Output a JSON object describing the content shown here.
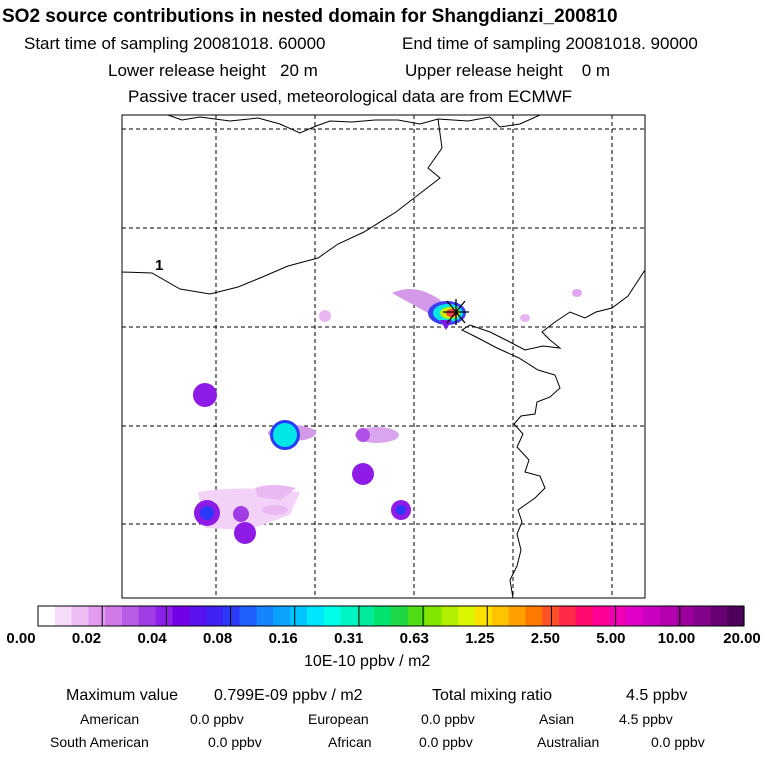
{
  "header": {
    "title": "SO2 source contributions in nested domain for Shangdianzi_200810",
    "start_label": "Start time of sampling 20081018. 60000",
    "end_label": "End time of sampling 20081018. 90000",
    "lower_label": "Lower release height   20 m",
    "upper_label": "Upper release height    0 m",
    "tracer_note": "Passive tracer used, meteorological data are from ECMWF"
  },
  "map": {
    "region_label": "1",
    "station_marker": "station-cross-icon"
  },
  "colorbar": {
    "tick_labels": [
      "0.00",
      "0.02",
      "0.04",
      "0.08",
      "0.16",
      "0.31",
      "0.63",
      "1.25",
      "2.50",
      "5.00",
      "10.00",
      "20.00"
    ],
    "units": "10E-10 ppbv / m2",
    "colors": [
      "#ffffff",
      "#f6dcf8",
      "#eebdf4",
      "#e29bee",
      "#cf78e8",
      "#b85be6",
      "#a23de6",
      "#8c1fe8",
      "#7400e6",
      "#5a12ee",
      "#3f22f4",
      "#2a3af8",
      "#1f60fc",
      "#1484ff",
      "#0aa4ff",
      "#00c4ff",
      "#00e6ff",
      "#00ffe6",
      "#00f5c4",
      "#00eb9a",
      "#00e16e",
      "#1ed744",
      "#50dc14",
      "#82e600",
      "#b4ee00",
      "#dcf500",
      "#ffe100",
      "#ffc300",
      "#ffa000",
      "#ff7800",
      "#ff5028",
      "#ff2846",
      "#ff0a6e",
      "#ff0096",
      "#f000b4",
      "#e000c8",
      "#cc00c0",
      "#b400b0",
      "#9c009c",
      "#82008a",
      "#680074",
      "#4c005a"
    ]
  },
  "stats": {
    "max_label": "Maximum value",
    "max_value": "0.799E-09 ppbv / m2",
    "total_label": "Total mixing ratio",
    "total_value": "4.5 ppbv",
    "regions": [
      {
        "name": "American",
        "value": "0.0 ppbv"
      },
      {
        "name": "European",
        "value": "0.0 ppbv"
      },
      {
        "name": "Asian",
        "value": "4.5 ppbv"
      },
      {
        "name": "South American",
        "value": "0.0 ppbv"
      },
      {
        "name": "African",
        "value": "0.0 ppbv"
      },
      {
        "name": "Australian",
        "value": "0.0 ppbv"
      }
    ]
  }
}
